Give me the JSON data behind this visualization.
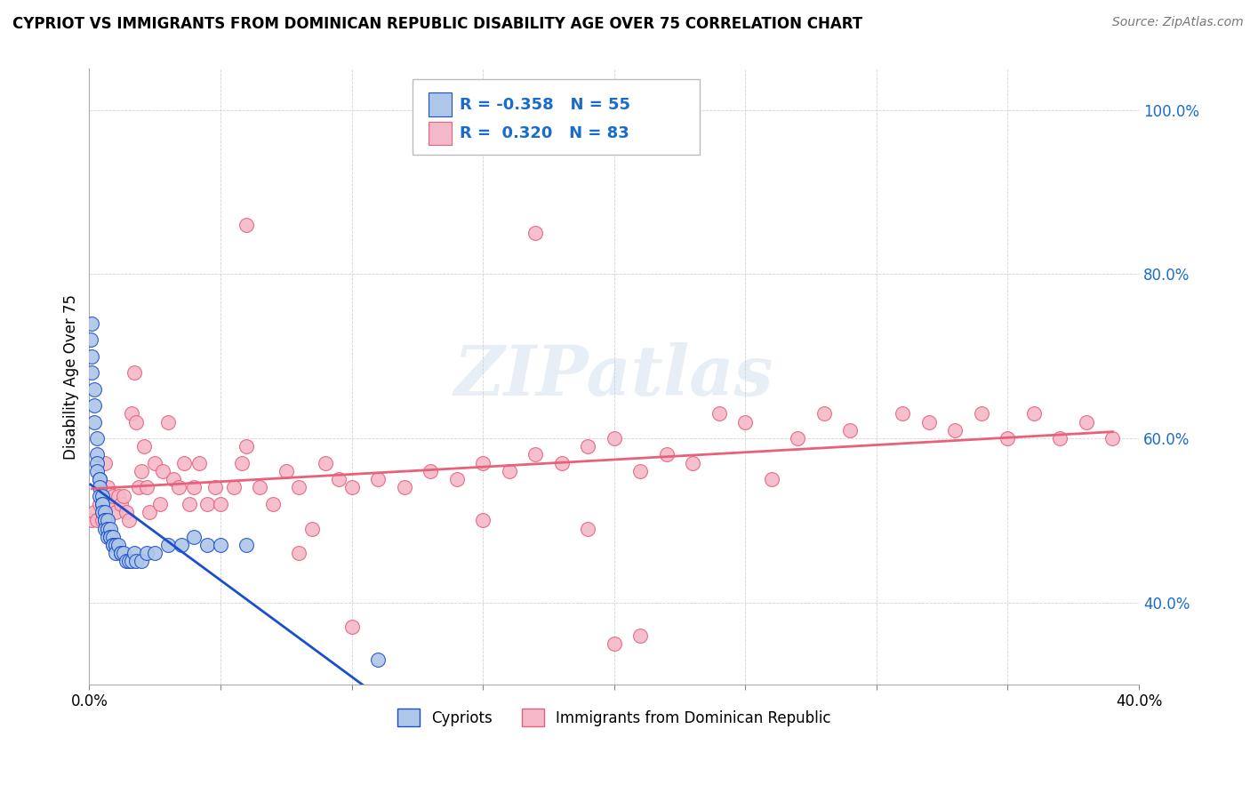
{
  "title": "CYPRIOT VS IMMIGRANTS FROM DOMINICAN REPUBLIC DISABILITY AGE OVER 75 CORRELATION CHART",
  "source": "Source: ZipAtlas.com",
  "ylabel": "Disability Age Over 75",
  "legend_label1": "Cypriots",
  "legend_label2": "Immigrants from Dominican Republic",
  "r1": "-0.358",
  "n1": "55",
  "r2": "0.320",
  "n2": "83",
  "color1": "#aec6e8",
  "color2": "#f4b8c8",
  "line1_color": "#1a4fcc",
  "line2_color": "#e8607a",
  "xmin": 0.0,
  "xmax": 0.4,
  "ymin": 0.3,
  "ymax": 1.05,
  "blue_scatter_x": [
    0.0005,
    0.001,
    0.001,
    0.001,
    0.002,
    0.002,
    0.002,
    0.003,
    0.003,
    0.003,
    0.003,
    0.004,
    0.004,
    0.004,
    0.004,
    0.005,
    0.005,
    0.005,
    0.005,
    0.006,
    0.006,
    0.006,
    0.006,
    0.007,
    0.007,
    0.007,
    0.007,
    0.008,
    0.008,
    0.008,
    0.009,
    0.009,
    0.009,
    0.01,
    0.01,
    0.01,
    0.011,
    0.012,
    0.012,
    0.013,
    0.014,
    0.015,
    0.016,
    0.017,
    0.018,
    0.02,
    0.022,
    0.025,
    0.03,
    0.035,
    0.04,
    0.045,
    0.05,
    0.06,
    0.11
  ],
  "blue_scatter_y": [
    0.72,
    0.74,
    0.7,
    0.68,
    0.66,
    0.64,
    0.62,
    0.6,
    0.58,
    0.57,
    0.56,
    0.55,
    0.55,
    0.54,
    0.53,
    0.53,
    0.52,
    0.52,
    0.51,
    0.51,
    0.5,
    0.5,
    0.49,
    0.5,
    0.49,
    0.49,
    0.48,
    0.49,
    0.48,
    0.48,
    0.48,
    0.47,
    0.47,
    0.47,
    0.47,
    0.46,
    0.47,
    0.46,
    0.46,
    0.46,
    0.45,
    0.45,
    0.45,
    0.46,
    0.45,
    0.45,
    0.46,
    0.46,
    0.47,
    0.47,
    0.48,
    0.47,
    0.47,
    0.47,
    0.33
  ],
  "pink_scatter_x": [
    0.001,
    0.002,
    0.003,
    0.004,
    0.005,
    0.006,
    0.007,
    0.008,
    0.009,
    0.01,
    0.011,
    0.012,
    0.013,
    0.014,
    0.015,
    0.016,
    0.017,
    0.018,
    0.019,
    0.02,
    0.021,
    0.022,
    0.023,
    0.025,
    0.027,
    0.028,
    0.03,
    0.032,
    0.034,
    0.036,
    0.038,
    0.04,
    0.042,
    0.045,
    0.048,
    0.05,
    0.055,
    0.058,
    0.06,
    0.065,
    0.07,
    0.075,
    0.08,
    0.085,
    0.09,
    0.095,
    0.1,
    0.11,
    0.12,
    0.13,
    0.14,
    0.15,
    0.16,
    0.17,
    0.18,
    0.19,
    0.2,
    0.21,
    0.22,
    0.23,
    0.25,
    0.27,
    0.28,
    0.29,
    0.31,
    0.32,
    0.33,
    0.34,
    0.35,
    0.36,
    0.37,
    0.38,
    0.39,
    0.17,
    0.19,
    0.21,
    0.06,
    0.08,
    0.1,
    0.15,
    0.2,
    0.24,
    0.26
  ],
  "pink_scatter_y": [
    0.5,
    0.51,
    0.5,
    0.52,
    0.5,
    0.57,
    0.54,
    0.52,
    0.53,
    0.51,
    0.53,
    0.52,
    0.53,
    0.51,
    0.5,
    0.63,
    0.68,
    0.62,
    0.54,
    0.56,
    0.59,
    0.54,
    0.51,
    0.57,
    0.52,
    0.56,
    0.62,
    0.55,
    0.54,
    0.57,
    0.52,
    0.54,
    0.57,
    0.52,
    0.54,
    0.52,
    0.54,
    0.57,
    0.59,
    0.54,
    0.52,
    0.56,
    0.54,
    0.49,
    0.57,
    0.55,
    0.54,
    0.55,
    0.54,
    0.56,
    0.55,
    0.57,
    0.56,
    0.58,
    0.57,
    0.59,
    0.6,
    0.56,
    0.58,
    0.57,
    0.62,
    0.6,
    0.63,
    0.61,
    0.63,
    0.62,
    0.61,
    0.63,
    0.6,
    0.63,
    0.6,
    0.62,
    0.6,
    0.85,
    0.49,
    0.36,
    0.86,
    0.46,
    0.37,
    0.5,
    0.35,
    0.63,
    0.55
  ]
}
